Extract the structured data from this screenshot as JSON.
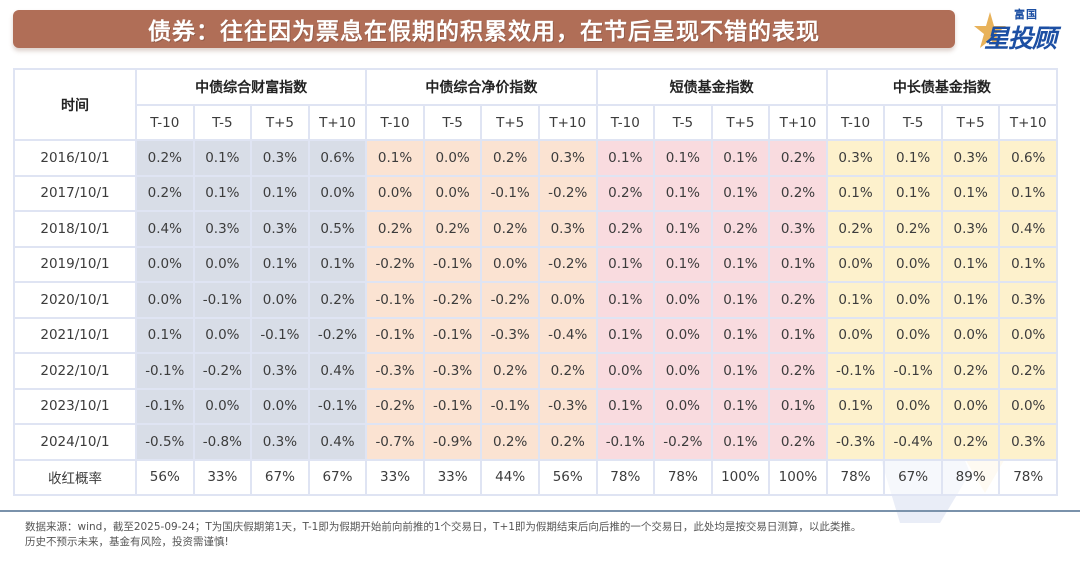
{
  "header": {
    "title": "债券：往往因为票息在假期的积累效用，在节后呈现不错的表现"
  },
  "logo": {
    "small_text": "富国",
    "big_text": "星投顾",
    "icon": "star-icon"
  },
  "watermark": {
    "text": "富国基金"
  },
  "table": {
    "time_header": "时间",
    "groups": [
      {
        "name": "中债综合财富指数",
        "color": "#d8dde7"
      },
      {
        "name": "中债综合净价指数",
        "color": "#fbe3d2"
      },
      {
        "name": "短债基金指数",
        "color": "#f9dbdf"
      },
      {
        "name": "中长债基金指数",
        "color": "#fdf1cc"
      }
    ],
    "sub_headers": [
      "T-10",
      "T-5",
      "T+5",
      "T+10"
    ],
    "rows": [
      {
        "date": "2016/10/1",
        "values": [
          "0.2%",
          "0.1%",
          "0.3%",
          "0.6%",
          "0.1%",
          "0.0%",
          "0.2%",
          "0.3%",
          "0.1%",
          "0.1%",
          "0.1%",
          "0.2%",
          "0.3%",
          "0.1%",
          "0.3%",
          "0.6%"
        ]
      },
      {
        "date": "2017/10/1",
        "values": [
          "0.2%",
          "0.1%",
          "0.1%",
          "0.0%",
          "0.0%",
          "0.0%",
          "-0.1%",
          "-0.2%",
          "0.2%",
          "0.1%",
          "0.1%",
          "0.2%",
          "0.1%",
          "0.1%",
          "0.1%",
          "0.1%"
        ]
      },
      {
        "date": "2018/10/1",
        "values": [
          "0.4%",
          "0.3%",
          "0.3%",
          "0.5%",
          "0.2%",
          "0.2%",
          "0.2%",
          "0.3%",
          "0.2%",
          "0.1%",
          "0.2%",
          "0.3%",
          "0.2%",
          "0.2%",
          "0.3%",
          "0.4%"
        ]
      },
      {
        "date": "2019/10/1",
        "values": [
          "0.0%",
          "0.0%",
          "0.1%",
          "0.1%",
          "-0.2%",
          "-0.1%",
          "0.0%",
          "-0.2%",
          "0.1%",
          "0.1%",
          "0.1%",
          "0.1%",
          "0.0%",
          "0.0%",
          "0.1%",
          "0.1%"
        ]
      },
      {
        "date": "2020/10/1",
        "values": [
          "0.0%",
          "-0.1%",
          "0.0%",
          "0.2%",
          "-0.1%",
          "-0.2%",
          "-0.2%",
          "0.0%",
          "0.1%",
          "0.0%",
          "0.1%",
          "0.2%",
          "0.1%",
          "0.0%",
          "0.1%",
          "0.3%"
        ]
      },
      {
        "date": "2021/10/1",
        "values": [
          "0.1%",
          "0.0%",
          "-0.1%",
          "-0.2%",
          "-0.1%",
          "-0.1%",
          "-0.3%",
          "-0.4%",
          "0.1%",
          "0.0%",
          "0.1%",
          "0.1%",
          "0.0%",
          "0.0%",
          "0.0%",
          "0.0%"
        ]
      },
      {
        "date": "2022/10/1",
        "values": [
          "-0.1%",
          "-0.2%",
          "0.3%",
          "0.4%",
          "-0.3%",
          "-0.3%",
          "0.2%",
          "0.2%",
          "0.0%",
          "0.0%",
          "0.1%",
          "0.2%",
          "-0.1%",
          "-0.1%",
          "0.2%",
          "0.2%"
        ]
      },
      {
        "date": "2023/10/1",
        "values": [
          "-0.1%",
          "0.0%",
          "0.0%",
          "-0.1%",
          "-0.2%",
          "-0.1%",
          "-0.1%",
          "-0.3%",
          "0.1%",
          "0.0%",
          "0.1%",
          "0.1%",
          "0.1%",
          "0.0%",
          "0.0%",
          "0.0%"
        ]
      },
      {
        "date": "2024/10/1",
        "values": [
          "-0.5%",
          "-0.8%",
          "0.3%",
          "0.4%",
          "-0.7%",
          "-0.9%",
          "0.2%",
          "0.2%",
          "-0.1%",
          "-0.2%",
          "0.1%",
          "0.2%",
          "-0.3%",
          "-0.4%",
          "0.2%",
          "0.3%"
        ]
      }
    ],
    "probability_row": {
      "label": "收红概率",
      "values": [
        "56%",
        "33%",
        "67%",
        "67%",
        "33%",
        "33%",
        "44%",
        "56%",
        "78%",
        "78%",
        "100%",
        "100%",
        "78%",
        "67%",
        "89%",
        "78%"
      ]
    }
  },
  "footer": {
    "line1": "数据来源：wind，截至2025-09-24；T为国庆假期第1天，T-1即为假期开始前向前推的1个交易日，T+1即为假期结束后向后推的一个交易日，此处均是按交易日测算，以此类推。",
    "line2": "历史不预示未来，基金有风险，投资需谨慎!"
  }
}
